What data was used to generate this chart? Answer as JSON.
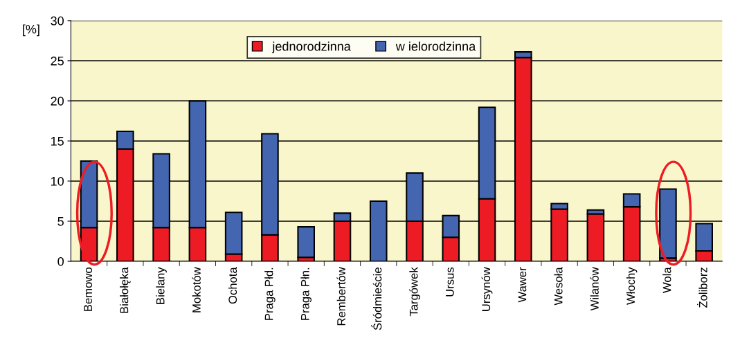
{
  "chart_data": {
    "type": "bar",
    "stacked": true,
    "ylabel": "[%]",
    "categories": [
      "Bemowo",
      "Białołęka",
      "Bielany",
      "Mokotów",
      "Ochota",
      "Praga Płd.",
      "Praga Płn.",
      "Rembertów",
      "Śródmieście",
      "Targówek",
      "Ursus",
      "Ursynów",
      "Wawer",
      "Wesoła",
      "Wilanów",
      "Włochy",
      "Wola",
      "Żoliborz"
    ],
    "series": [
      {
        "name": "jednorodzinna",
        "color": "#ed1c24",
        "values": [
          4.2,
          14.0,
          4.2,
          4.2,
          0.9,
          3.3,
          0.5,
          5.0,
          null,
          5.0,
          3.0,
          7.8,
          25.4,
          6.5,
          5.9,
          6.8,
          0.4,
          1.3
        ]
      },
      {
        "name": "w ielorodzinna",
        "color": "#4466b0",
        "values": [
          8.3,
          2.2,
          9.2,
          15.8,
          5.2,
          12.6,
          3.8,
          1.0,
          7.5,
          6.0,
          2.7,
          11.4,
          0.7,
          0.7,
          0.5,
          1.6,
          8.6,
          3.4
        ]
      }
    ],
    "ylim": [
      0,
      30
    ],
    "yticks": [
      0,
      5,
      10,
      15,
      20,
      25,
      30
    ],
    "grid": "y",
    "legend": "top"
  }
}
